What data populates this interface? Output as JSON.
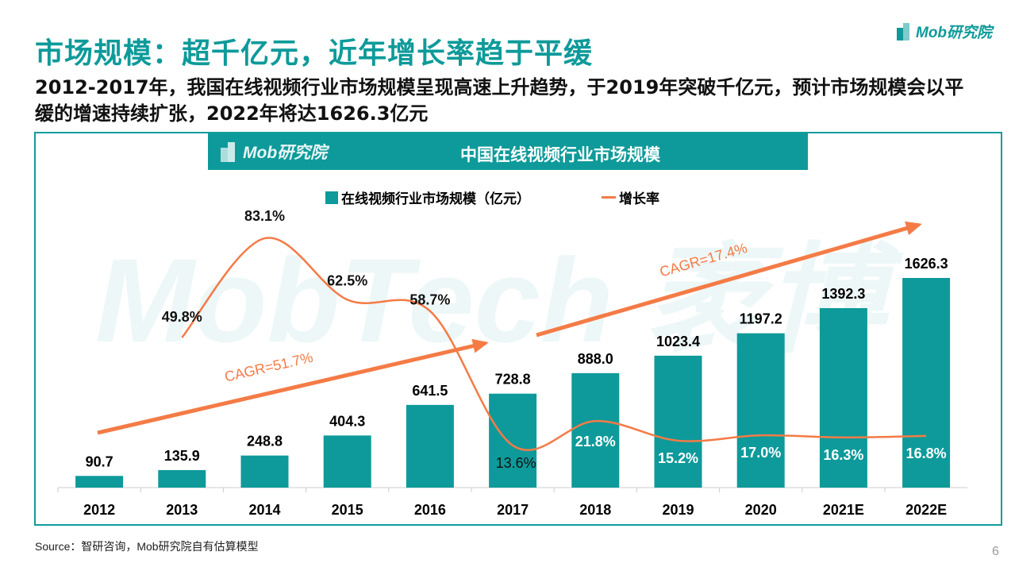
{
  "page": {
    "title": "市场规模：超千亿元，近年增长率趋于平缓",
    "subtitle": "2012-2017年，我国在线视频行业市场规模呈现高速上升趋势，于2019年突破千亿元，预计市场规模会以平缓的增速持续扩张，2022年将达1626.3亿元",
    "logo": "Mob研究院",
    "source": "Source：智研咨询，Mob研究院自有估算模型",
    "page_number": "6",
    "watermark": "MobTech 袤博"
  },
  "colors": {
    "bar": "#0e9a9a",
    "line": "#f47b46"
  },
  "chart_data": {
    "type": "bar",
    "title": "中国在线视频行业市场规模",
    "header_logo": "Mob研究院",
    "categories": [
      "2012",
      "2013",
      "2014",
      "2015",
      "2016",
      "2017",
      "2018",
      "2019",
      "2020",
      "2021E",
      "2022E"
    ],
    "series": [
      {
        "name": "在线视频行业市场规模（亿元）",
        "type": "bar",
        "values": [
          90.7,
          135.9,
          248.8,
          404.3,
          641.5,
          728.8,
          888.0,
          1023.4,
          1197.2,
          1392.3,
          1626.3
        ],
        "labels": [
          "90.7",
          "135.9",
          "248.8",
          "404.3",
          "641.5",
          "728.8",
          "888.0",
          "1023.4",
          "1197.2",
          "1392.3",
          "1626.3"
        ]
      },
      {
        "name": "增长率",
        "type": "line",
        "values": [
          null,
          49.8,
          83.1,
          62.5,
          58.7,
          13.6,
          21.8,
          15.2,
          17.0,
          16.3,
          16.8
        ],
        "labels": [
          "",
          "49.8%",
          "83.1%",
          "62.5%",
          "58.7%",
          "13.6%",
          "21.8%",
          "15.2%",
          "17.0%",
          "16.3%",
          "16.8%"
        ]
      }
    ],
    "annotations": [
      "CAGR=51.7%",
      "CAGR=17.4%"
    ],
    "legend": "top-center",
    "grid": false
  }
}
